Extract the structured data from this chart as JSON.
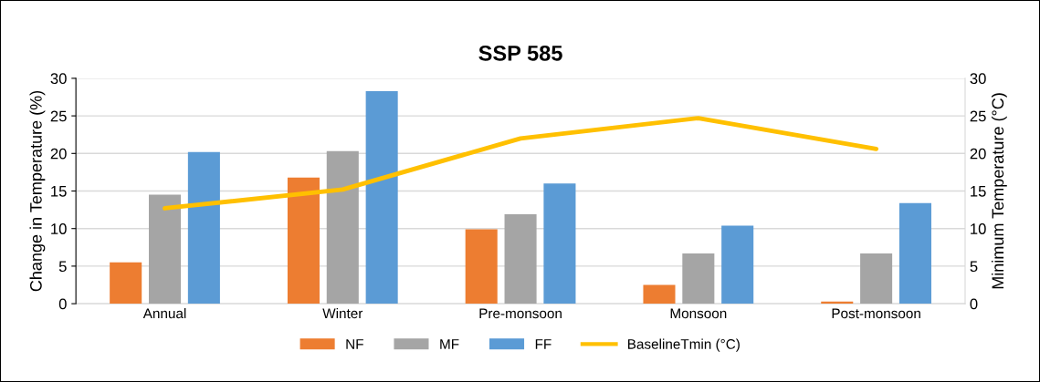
{
  "chart_data": {
    "type": "bar",
    "title": "SSP 585",
    "ylabel": "Change in Temperature (%)",
    "y2label": "Minimum Temperature (°C)",
    "categories": [
      "Annual",
      "Winter",
      "Pre-monsoon",
      "Monsoon",
      "Post-monsoon"
    ],
    "series": [
      {
        "name": "NF",
        "color": "#ed7d31",
        "values": [
          5.5,
          16.8,
          9.9,
          2.5,
          0.3
        ]
      },
      {
        "name": "MF",
        "color": "#a5a5a5",
        "values": [
          14.5,
          20.3,
          11.9,
          6.7,
          6.7
        ]
      },
      {
        "name": "FF",
        "color": "#5b9bd5",
        "values": [
          20.2,
          28.3,
          16.0,
          10.4,
          13.4
        ]
      },
      {
        "name": "BaselineTmin (°C)",
        "color": "#ffc000",
        "type": "line",
        "axis": "y2",
        "values": [
          12.7,
          15.2,
          22.0,
          24.7,
          20.6
        ]
      }
    ],
    "ylim": [
      0,
      30
    ],
    "yticks": [
      0,
      5,
      10,
      15,
      20,
      25,
      30
    ],
    "y2lim": [
      0,
      30
    ],
    "y2ticks": [
      0,
      5,
      10,
      15,
      20,
      25,
      30
    ],
    "grid": "y",
    "legend": "bottom"
  }
}
